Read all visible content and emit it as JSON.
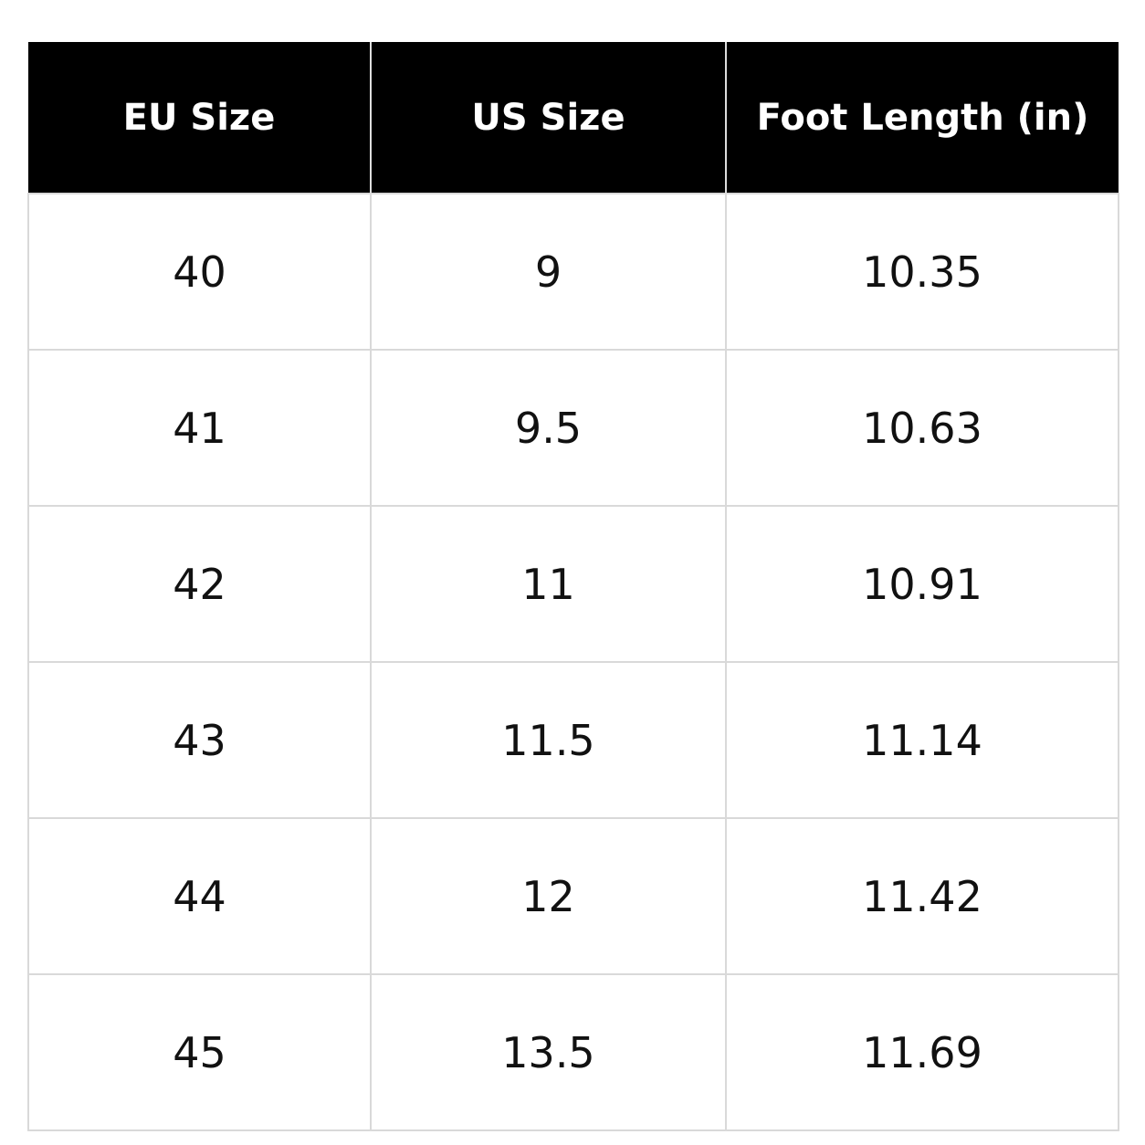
{
  "table": {
    "header": [
      "EU Size",
      "US Size",
      "Foot Length (in)"
    ],
    "rows": [
      [
        "40",
        "9",
        "10.35"
      ],
      [
        "41",
        "9.5",
        "10.63"
      ],
      [
        "42",
        "11",
        "10.91"
      ],
      [
        "43",
        "11.5",
        "11.14"
      ],
      [
        "44",
        "12",
        "11.42"
      ],
      [
        "45",
        "13.5",
        "11.69"
      ]
    ]
  }
}
